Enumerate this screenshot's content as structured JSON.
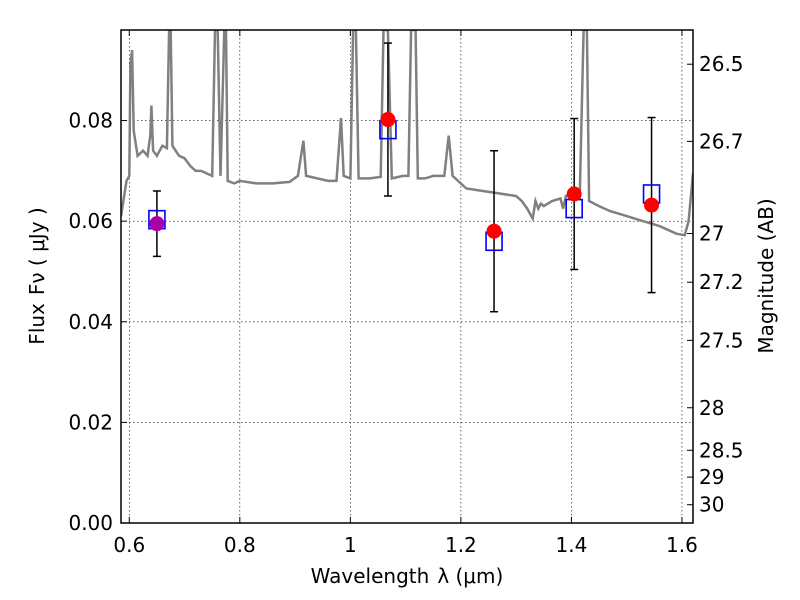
{
  "chart_data": {
    "type": "scatter",
    "xlabel": "Wavelength",
    "xlabel_symbol": "λ (μm)",
    "ylabel": "Flux",
    "ylabel_symbol": "Fν ( μJy )",
    "y2label": "Magnitude (AB)",
    "xlim": [
      0.585,
      1.62
    ],
    "ylim": [
      0.0,
      0.098
    ],
    "x_ticks": [
      0.6,
      0.8,
      1.0,
      1.2,
      1.4,
      1.6
    ],
    "x_tick_labels": [
      "0.6",
      "0.8",
      "1",
      "1.2",
      "1.4",
      "1.6"
    ],
    "y_ticks": [
      0.0,
      0.02,
      0.04,
      0.06,
      0.08
    ],
    "y_tick_labels": [
      "0.00",
      "0.02",
      "0.04",
      "0.06",
      "0.08"
    ],
    "y2_ticks": [
      26.5,
      26.7,
      27,
      27.2,
      27.5,
      28,
      28.5,
      29,
      30
    ],
    "y2_tick_labels": [
      "26.5",
      "26.7",
      "27",
      "27.2",
      "27.5",
      "28",
      "28.5",
      "29",
      "30"
    ],
    "grid": true,
    "colors": {
      "model": "#808080",
      "observed": "#ff0000",
      "synthetic": "#0000ff",
      "blend": "#aa00aa",
      "errorbar": "#000000"
    },
    "observed": [
      {
        "x": 0.65,
        "y": 0.0595,
        "err": 0.0065
      },
      {
        "x": 1.068,
        "y": 0.0802,
        "err": 0.0152
      },
      {
        "x": 1.26,
        "y": 0.058,
        "err": 0.016
      },
      {
        "x": 1.405,
        "y": 0.0654,
        "err": 0.015
      },
      {
        "x": 1.545,
        "y": 0.0632,
        "err": 0.0174
      }
    ],
    "synthetic": [
      {
        "x": 0.65,
        "y": 0.0603
      },
      {
        "x": 1.068,
        "y": 0.0782
      },
      {
        "x": 1.26,
        "y": 0.056
      },
      {
        "x": 1.405,
        "y": 0.0625
      },
      {
        "x": 1.545,
        "y": 0.0654
      }
    ],
    "model_spectrum": [
      [
        0.585,
        0.061
      ],
      [
        0.595,
        0.068
      ],
      [
        0.6,
        0.069
      ],
      [
        0.602,
        0.091
      ],
      [
        0.605,
        0.094
      ],
      [
        0.608,
        0.078
      ],
      [
        0.615,
        0.073
      ],
      [
        0.625,
        0.074
      ],
      [
        0.633,
        0.073
      ],
      [
        0.638,
        0.077
      ],
      [
        0.64,
        0.083
      ],
      [
        0.643,
        0.074
      ],
      [
        0.65,
        0.073
      ],
      [
        0.66,
        0.075
      ],
      [
        0.668,
        0.0745
      ],
      [
        0.672,
        0.098
      ],
      [
        0.675,
        0.098
      ],
      [
        0.678,
        0.075
      ],
      [
        0.69,
        0.073
      ],
      [
        0.7,
        0.0725
      ],
      [
        0.71,
        0.071
      ],
      [
        0.72,
        0.07
      ],
      [
        0.73,
        0.07
      ],
      [
        0.74,
        0.0695
      ],
      [
        0.75,
        0.069
      ],
      [
        0.755,
        0.098
      ],
      [
        0.76,
        0.098
      ],
      [
        0.765,
        0.069
      ],
      [
        0.772,
        0.098
      ],
      [
        0.775,
        0.098
      ],
      [
        0.778,
        0.068
      ],
      [
        0.79,
        0.0675
      ],
      [
        0.8,
        0.068
      ],
      [
        0.83,
        0.0675
      ],
      [
        0.86,
        0.0675
      ],
      [
        0.89,
        0.0678
      ],
      [
        0.905,
        0.069
      ],
      [
        0.915,
        0.076
      ],
      [
        0.92,
        0.069
      ],
      [
        0.94,
        0.0685
      ],
      [
        0.96,
        0.068
      ],
      [
        0.975,
        0.068
      ],
      [
        0.983,
        0.0805
      ],
      [
        0.988,
        0.069
      ],
      [
        1.0,
        0.0685
      ],
      [
        1.005,
        0.098
      ],
      [
        1.01,
        0.098
      ],
      [
        1.015,
        0.0685
      ],
      [
        1.035,
        0.0685
      ],
      [
        1.055,
        0.0688
      ],
      [
        1.06,
        0.098
      ],
      [
        1.068,
        0.098
      ],
      [
        1.075,
        0.0685
      ],
      [
        1.095,
        0.069
      ],
      [
        1.105,
        0.069
      ],
      [
        1.11,
        0.098
      ],
      [
        1.118,
        0.098
      ],
      [
        1.122,
        0.0685
      ],
      [
        1.135,
        0.0685
      ],
      [
        1.15,
        0.069
      ],
      [
        1.17,
        0.069
      ],
      [
        1.178,
        0.077
      ],
      [
        1.185,
        0.069
      ],
      [
        1.21,
        0.0665
      ],
      [
        1.24,
        0.066
      ],
      [
        1.27,
        0.0655
      ],
      [
        1.3,
        0.065
      ],
      [
        1.31,
        0.064
      ],
      [
        1.32,
        0.0625
      ],
      [
        1.33,
        0.0605
      ],
      [
        1.335,
        0.064
      ],
      [
        1.34,
        0.0625
      ],
      [
        1.345,
        0.0635
      ],
      [
        1.35,
        0.063
      ],
      [
        1.365,
        0.064
      ],
      [
        1.38,
        0.0645
      ],
      [
        1.385,
        0.0625
      ],
      [
        1.39,
        0.065
      ],
      [
        1.398,
        0.0655
      ],
      [
        1.405,
        0.065
      ],
      [
        1.415,
        0.0645
      ],
      [
        1.422,
        0.098
      ],
      [
        1.428,
        0.098
      ],
      [
        1.432,
        0.064
      ],
      [
        1.45,
        0.063
      ],
      [
        1.47,
        0.062
      ],
      [
        1.5,
        0.061
      ],
      [
        1.53,
        0.06
      ],
      [
        1.56,
        0.059
      ],
      [
        1.59,
        0.0575
      ],
      [
        1.605,
        0.0572
      ],
      [
        1.612,
        0.06
      ],
      [
        1.62,
        0.0695
      ]
    ]
  }
}
